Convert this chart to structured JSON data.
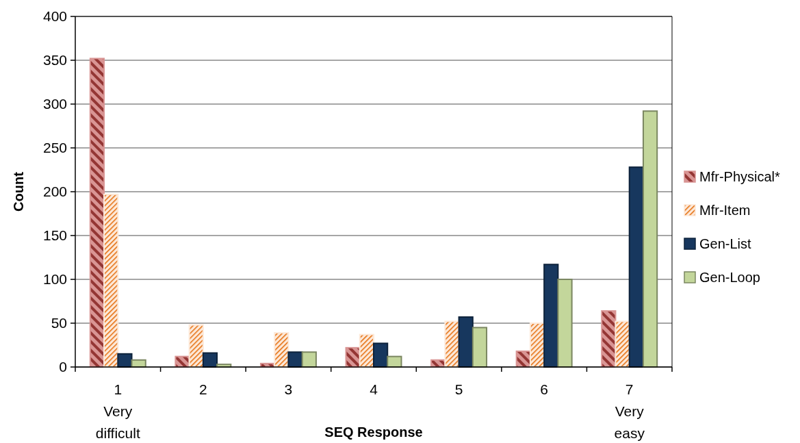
{
  "chart_data": {
    "type": "bar",
    "xlabel": "SEQ Response",
    "ylabel": "Count",
    "categories": [
      "1\nVery\ndifficult",
      "2",
      "3",
      "4",
      "5",
      "6",
      "7\nVery\neasy"
    ],
    "series": [
      {
        "name": "Mfr-Physical*",
        "color": "#d99594",
        "values": [
          352,
          12,
          4,
          22,
          8,
          18,
          64
        ]
      },
      {
        "name": "Mfr-Item",
        "color": "#fde9d9",
        "values": [
          197,
          48,
          39,
          37,
          52,
          50,
          52
        ]
      },
      {
        "name": "Gen-List",
        "color": "#17375e",
        "values": [
          15,
          16,
          17,
          27,
          57,
          117,
          228
        ]
      },
      {
        "name": "Gen-Loop",
        "color": "#c3d69b",
        "values": [
          8,
          3,
          17,
          12,
          45,
          100,
          292
        ]
      }
    ],
    "ylim": [
      0,
      400
    ],
    "yticks": [
      0,
      50,
      100,
      150,
      200,
      250,
      300,
      350,
      400
    ],
    "grid": "y",
    "legend": "right"
  }
}
